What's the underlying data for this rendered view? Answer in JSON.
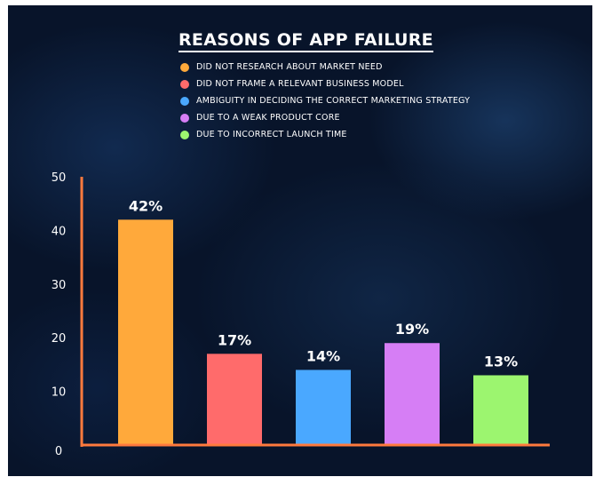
{
  "chart_data": {
    "type": "bar",
    "title": "REASONS OF APP FAILURE",
    "xlabel": "",
    "ylabel": "",
    "ylim": [
      0,
      50
    ],
    "yticks": [
      0,
      10,
      20,
      30,
      40,
      50
    ],
    "grid": false,
    "legend_position": "top",
    "categories": [
      "DID NOT RESEARCH ABOUT MARKET NEED",
      "DID NOT FRAME A RELEVANT BUSINESS MODEL",
      "AMBIGUITY IN DECIDING THE CORRECT MARKETING STRATEGY",
      "DUE TO A WEAK PRODUCT CORE",
      "DUE TO INCORRECT LAUNCH TIME"
    ],
    "values": [
      42,
      17,
      14,
      19,
      13
    ],
    "data_labels": [
      "42%",
      "17%",
      "14%",
      "19%",
      "13%"
    ],
    "colors": [
      "#ffa93b",
      "#ff6b6b",
      "#4aa8ff",
      "#d67ef5",
      "#9cf56f"
    ],
    "axis_color": "#ff7a3d",
    "background_color": "#08142a"
  }
}
